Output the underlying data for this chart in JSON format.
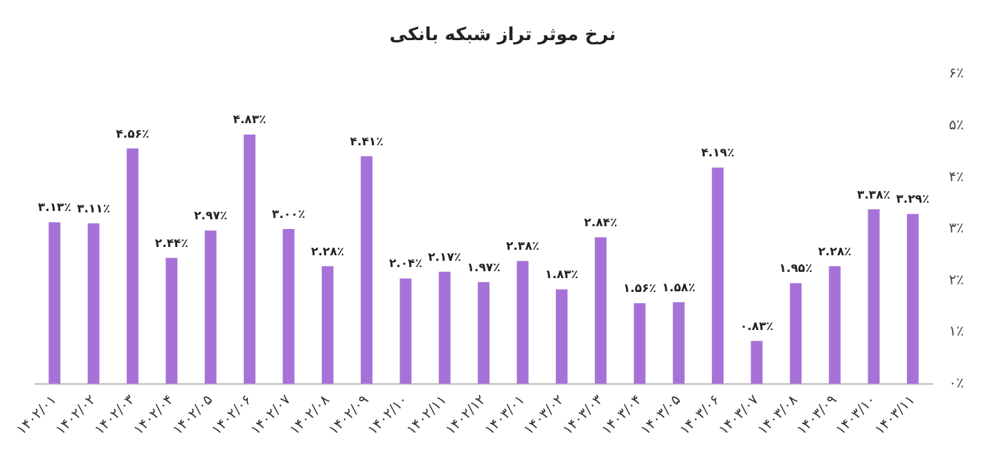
{
  "chart_data": {
    "type": "bar",
    "title": "نرخ موثر تراز شبکه بانکی",
    "categories": [
      "۱۴۰۲/۰۱",
      "۱۴۰۲/۰۲",
      "۱۴۰۲/۰۳",
      "۱۴۰۲/۰۴",
      "۱۴۰۲/۰۵",
      "۱۴۰۲/۰۶",
      "۱۴۰۲/۰۷",
      "۱۴۰۲/۰۸",
      "۱۴۰۲/۰۹",
      "۱۴۰۲/۱۰",
      "۱۴۰۲/۱۱",
      "۱۴۰۲/۱۲",
      "۱۴۰۳/۰۱",
      "۱۴۰۳/۰۲",
      "۱۴۰۳/۰۳",
      "۱۴۰۳/۰۴",
      "۱۴۰۳/۰۵",
      "۱۴۰۳/۰۶",
      "۱۴۰۳/۰۷",
      "۱۴۰۳/۰۸",
      "۱۴۰۳/۰۹",
      "۱۴۰۳/۱۰",
      "۱۴۰۳/۱۱"
    ],
    "values": [
      3.13,
      3.11,
      4.56,
      2.44,
      2.97,
      4.83,
      3.0,
      2.28,
      4.41,
      2.04,
      2.17,
      1.97,
      2.38,
      1.83,
      2.84,
      1.56,
      1.58,
      4.19,
      0.83,
      1.95,
      2.28,
      3.38,
      3.29
    ],
    "value_labels": [
      "۳.۱۳٪",
      "۳.۱۱٪",
      "۴.۵۶٪",
      "۲.۴۴٪",
      "۲.۹۷٪",
      "۴.۸۳٪",
      "۳.۰۰٪",
      "۲.۲۸٪",
      "۴.۴۱٪",
      "۲.۰۴٪",
      "۲.۱۷٪",
      "۱.۹۷٪",
      "۲.۳۸٪",
      "۱.۸۳٪",
      "۲.۸۴٪",
      "۱.۵۶٪",
      "۱.۵۸٪",
      "۴.۱۹٪",
      "۰.۸۳٪",
      "۱.۹۵٪",
      "۲.۲۸٪",
      "۳.۳۸٪",
      "۳.۲۹٪"
    ],
    "color": "#a772d8",
    "ylim": [
      0,
      6
    ],
    "yticks": [
      {
        "value": 0,
        "label": "۰٪"
      },
      {
        "value": 1,
        "label": "۱٪"
      },
      {
        "value": 2,
        "label": "۲٪"
      },
      {
        "value": 3,
        "label": "۳٪"
      },
      {
        "value": 4,
        "label": "۴٪"
      },
      {
        "value": 5,
        "label": "۵٪"
      },
      {
        "value": 6,
        "label": "۶٪"
      }
    ],
    "grid": false,
    "legend": false
  }
}
